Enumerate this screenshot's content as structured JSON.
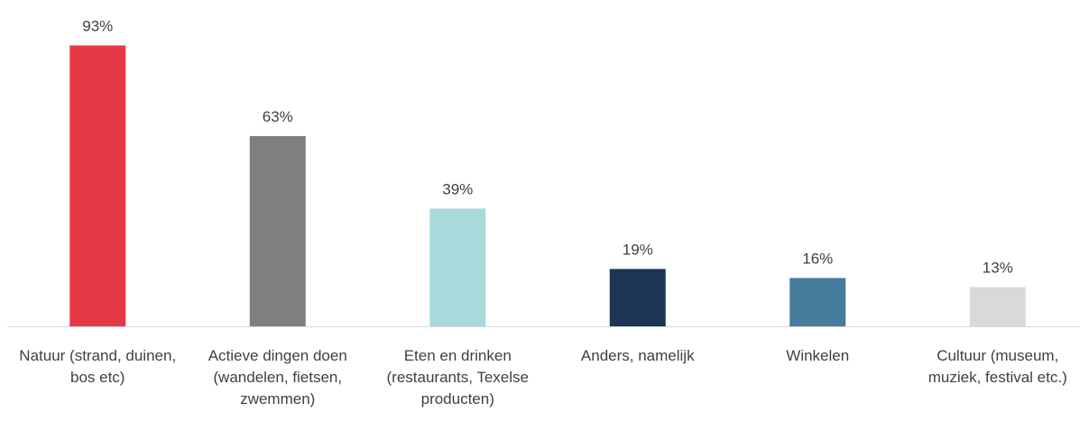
{
  "chart_data": {
    "type": "bar",
    "categories": [
      "Natuur (strand, duinen, bos etc)",
      "Actieve dingen doen (wandelen, fietsen, zwemmen)",
      "Eten en drinken (restaurants, Texelse producten)",
      "Anders, namelijk",
      "Winkelen",
      "Cultuur (museum, muziek, festival etc.)"
    ],
    "values": [
      93,
      63,
      39,
      19,
      16,
      13
    ],
    "value_labels": [
      "93%",
      "63%",
      "39%",
      "19%",
      "16%",
      "13%"
    ],
    "colors": [
      "#e63946",
      "#7f7f7f",
      "#a8dadc",
      "#1d3557",
      "#457b9d",
      "#d9d9d9"
    ],
    "ylim": [
      0,
      100
    ],
    "grid": false
  }
}
